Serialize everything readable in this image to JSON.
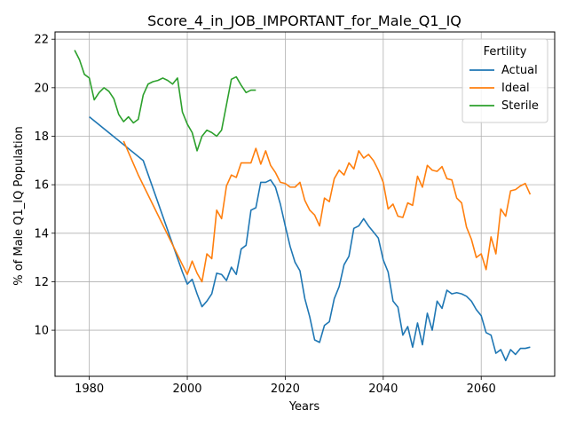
{
  "chart_data": {
    "type": "line",
    "title": "Score_4_in_JOB_IMPORTANT_for_Male_Q1_IQ",
    "xlabel": "Years",
    "ylabel": "% of Male Q1_IQ Population",
    "xlim": [
      1973,
      2075
    ],
    "ylim": [
      8.1,
      22.3
    ],
    "xticks": [
      1980,
      2000,
      2020,
      2040,
      2060
    ],
    "yticks": [
      10,
      12,
      14,
      16,
      18,
      20,
      22
    ],
    "grid": true,
    "legend": {
      "title": "Fertility",
      "placement": "top-right"
    },
    "series": [
      {
        "name": "Actual",
        "color": "#1f77b4",
        "x": [
          1980,
          1991,
          1999,
          2000,
          2001,
          2002,
          2003,
          2004,
          2005,
          2006,
          2007,
          2008,
          2009,
          2010,
          2011,
          2012,
          2013,
          2014,
          2015,
          2016,
          2017,
          2018,
          2019,
          2020,
          2021,
          2022,
          2023,
          2024,
          2025,
          2026,
          2027,
          2028,
          2029,
          2030,
          2031,
          2032,
          2033,
          2034,
          2035,
          2036,
          2037,
          2038,
          2039,
          2040,
          2041,
          2042,
          2043,
          2044,
          2045,
          2046,
          2047,
          2048,
          2049,
          2050,
          2051,
          2052,
          2053,
          2054,
          2055,
          2056,
          2057,
          2058,
          2059,
          2060,
          2061,
          2062,
          2063,
          2064,
          2065,
          2066,
          2067,
          2068,
          2069,
          2070
        ],
        "y": [
          18.8,
          17.0,
          12.4,
          11.9,
          12.1,
          11.5,
          10.97,
          11.2,
          11.5,
          12.35,
          12.3,
          12.05,
          12.6,
          12.3,
          13.35,
          13.5,
          14.95,
          15.05,
          16.1,
          16.1,
          16.2,
          15.9,
          15.2,
          14.3,
          13.45,
          12.8,
          12.45,
          11.3,
          10.55,
          9.6,
          9.5,
          10.2,
          10.35,
          11.3,
          11.8,
          12.7,
          13.05,
          14.2,
          14.3,
          14.6,
          14.3,
          14.05,
          13.8,
          12.9,
          12.4,
          11.2,
          10.95,
          9.8,
          10.15,
          9.3,
          10.3,
          9.4,
          10.7,
          10.0,
          11.2,
          10.9,
          11.65,
          11.5,
          11.55,
          11.5,
          11.4,
          11.2,
          10.85,
          10.6,
          9.9,
          9.8,
          9.05,
          9.2,
          8.75,
          9.2,
          9.0,
          9.25,
          9.25,
          9.3
        ]
      },
      {
        "name": "Ideal",
        "color": "#ff7f0e",
        "x": [
          1987,
          1990,
          1999,
          2000,
          2001,
          2002,
          2003,
          2004,
          2005,
          2006,
          2007,
          2008,
          2009,
          2010,
          2011,
          2012,
          2013,
          2014,
          2015,
          2016,
          2017,
          2018,
          2019,
          2020,
          2021,
          2022,
          2023,
          2024,
          2025,
          2026,
          2027,
          2028,
          2029,
          2030,
          2031,
          2032,
          2033,
          2034,
          2035,
          2036,
          2037,
          2038,
          2039,
          2040,
          2041,
          2042,
          2043,
          2044,
          2045,
          2046,
          2047,
          2048,
          2049,
          2050,
          2051,
          2052,
          2053,
          2054,
          2055,
          2056,
          2057,
          2058,
          2059,
          2060,
          2061,
          2062,
          2063,
          2064,
          2065,
          2066,
          2067,
          2068,
          2069,
          2070
        ],
        "y": [
          17.8,
          16.4,
          12.7,
          12.3,
          12.85,
          12.35,
          12.0,
          13.15,
          12.95,
          14.95,
          14.6,
          15.95,
          16.4,
          16.3,
          16.9,
          16.9,
          16.9,
          17.5,
          16.85,
          17.4,
          16.8,
          16.5,
          16.1,
          16.05,
          15.9,
          15.9,
          16.1,
          15.35,
          14.95,
          14.75,
          14.3,
          15.45,
          15.3,
          16.25,
          16.6,
          16.4,
          16.9,
          16.65,
          17.4,
          17.1,
          17.25,
          17.0,
          16.6,
          16.1,
          15.0,
          15.2,
          14.7,
          14.65,
          15.25,
          15.15,
          16.35,
          15.9,
          16.8,
          16.6,
          16.55,
          16.75,
          16.25,
          16.2,
          15.45,
          15.25,
          14.25,
          13.75,
          13.0,
          13.15,
          12.5,
          13.85,
          13.15,
          15.0,
          14.7,
          15.75,
          15.8,
          15.95,
          16.05,
          15.6
        ]
      },
      {
        "name": "Sterile",
        "color": "#2ca02c",
        "x": [
          1977,
          1978,
          1979,
          1980,
          1981,
          1982,
          1983,
          1984,
          1985,
          1986,
          1987,
          1988,
          1989,
          1990,
          1991,
          1992,
          1993,
          1994,
          1995,
          1996,
          1997,
          1998,
          1999,
          2000,
          2001,
          2002,
          2003,
          2004,
          2005,
          2006,
          2007,
          2008,
          2009,
          2010,
          2011,
          2012,
          2013,
          2014
        ],
        "y": [
          21.55,
          21.15,
          20.55,
          20.4,
          19.5,
          19.8,
          20.0,
          19.85,
          19.55,
          18.9,
          18.6,
          18.8,
          18.55,
          18.7,
          19.7,
          20.15,
          20.25,
          20.3,
          20.4,
          20.3,
          20.15,
          20.4,
          19.0,
          18.5,
          18.15,
          17.4,
          18.0,
          18.25,
          18.15,
          18.0,
          18.25,
          19.3,
          20.35,
          20.45,
          20.1,
          19.8,
          19.9,
          19.9
        ]
      }
    ]
  }
}
